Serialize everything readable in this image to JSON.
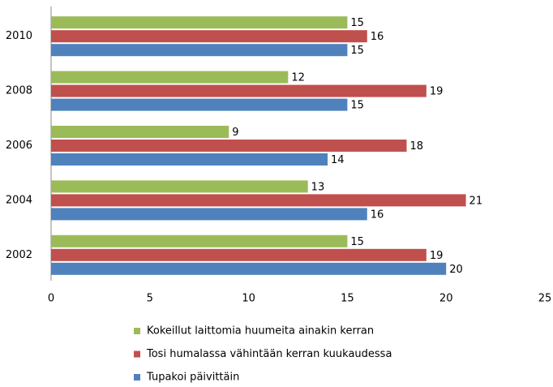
{
  "chart_data": {
    "type": "bar",
    "categories": [
      "2010",
      "2008",
      "2006",
      "2004",
      "2002"
    ],
    "series": [
      {
        "name": "Kokeillut laittomia huumeita ainakin kerran",
        "color": "#9bbb59",
        "values": [
          15,
          12,
          9,
          13,
          15
        ]
      },
      {
        "name": "Tosi humalassa vähintään kerran kuukaudessa",
        "color": "#c0504d",
        "values": [
          16,
          19,
          18,
          21,
          19
        ]
      },
      {
        "name": "Tupakoi päivittäin",
        "color": "#4f81bd",
        "values": [
          15,
          15,
          14,
          16,
          20
        ]
      }
    ],
    "xlim": [
      0,
      25
    ],
    "xticks": [
      0,
      5,
      10,
      15,
      20,
      25
    ]
  }
}
